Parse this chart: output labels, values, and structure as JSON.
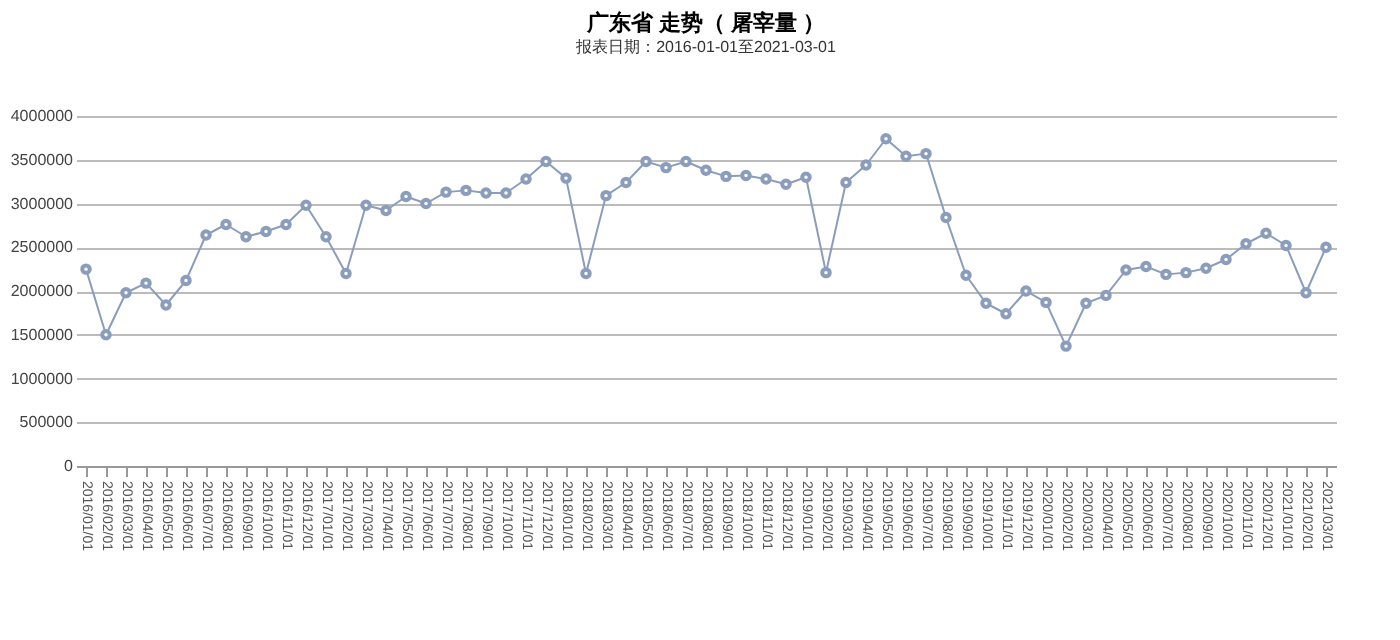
{
  "chart_data": {
    "type": "line",
    "title": "广东省 走势（ 屠宰量 ）",
    "subtitle": "报表日期：2016-01-01至2021-03-01",
    "categories": [
      "2016/01/01",
      "2016/02/01",
      "2016/03/01",
      "2016/04/01",
      "2016/05/01",
      "2016/06/01",
      "2016/07/01",
      "2016/08/01",
      "2016/09/01",
      "2016/10/01",
      "2016/11/01",
      "2016/12/01",
      "2017/01/01",
      "2017/02/01",
      "2017/03/01",
      "2017/04/01",
      "2017/05/01",
      "2017/06/01",
      "2017/07/01",
      "2017/08/01",
      "2017/09/01",
      "2017/10/01",
      "2017/11/01",
      "2017/12/01",
      "2018/01/01",
      "2018/02/01",
      "2018/03/01",
      "2018/04/01",
      "2018/05/01",
      "2018/06/01",
      "2018/07/01",
      "2018/08/01",
      "2018/09/01",
      "2018/10/01",
      "2018/11/01",
      "2018/12/01",
      "2019/01/01",
      "2019/02/01",
      "2019/03/01",
      "2019/04/01",
      "2019/05/01",
      "2019/06/01",
      "2019/07/01",
      "2019/08/01",
      "2019/09/01",
      "2019/10/01",
      "2019/11/01",
      "2019/12/01",
      "2020/01/01",
      "2020/02/01",
      "2020/03/01",
      "2020/04/01",
      "2020/05/01",
      "2020/06/01",
      "2020/07/01",
      "2020/08/01",
      "2020/09/01",
      "2020/10/01",
      "2020/11/01",
      "2020/12/01",
      "2021/01/01",
      "2021/02/01",
      "2021/03/01"
    ],
    "series": [
      {
        "color": "#8a9dbd",
        "values": [
          2250000,
          1500000,
          1980000,
          2090000,
          1840000,
          2120000,
          2640000,
          2760000,
          2620000,
          2680000,
          2760000,
          2980000,
          2620000,
          2200000,
          2980000,
          2920000,
          3080000,
          3000000,
          3130000,
          3150000,
          3120000,
          3120000,
          3280000,
          3480000,
          3290000,
          2200000,
          3090000,
          3240000,
          3480000,
          3410000,
          3480000,
          3380000,
          3310000,
          3320000,
          3280000,
          3220000,
          3300000,
          2210000,
          3240000,
          3440000,
          3740000,
          3540000,
          3570000,
          2840000,
          2180000,
          1860000,
          1740000,
          2000000,
          1870000,
          1370000,
          1860000,
          1950000,
          2240000,
          2280000,
          2190000,
          2210000,
          2260000,
          2360000,
          2540000,
          2660000,
          2520000,
          1980000,
          2500000
        ]
      }
    ],
    "ylim": [
      0,
      4000000
    ],
    "yticks": [
      0,
      500000,
      1000000,
      1500000,
      2000000,
      2500000,
      3000000,
      3500000,
      4000000
    ],
    "grid": "y",
    "marker": "circle",
    "line_style": "solid"
  }
}
